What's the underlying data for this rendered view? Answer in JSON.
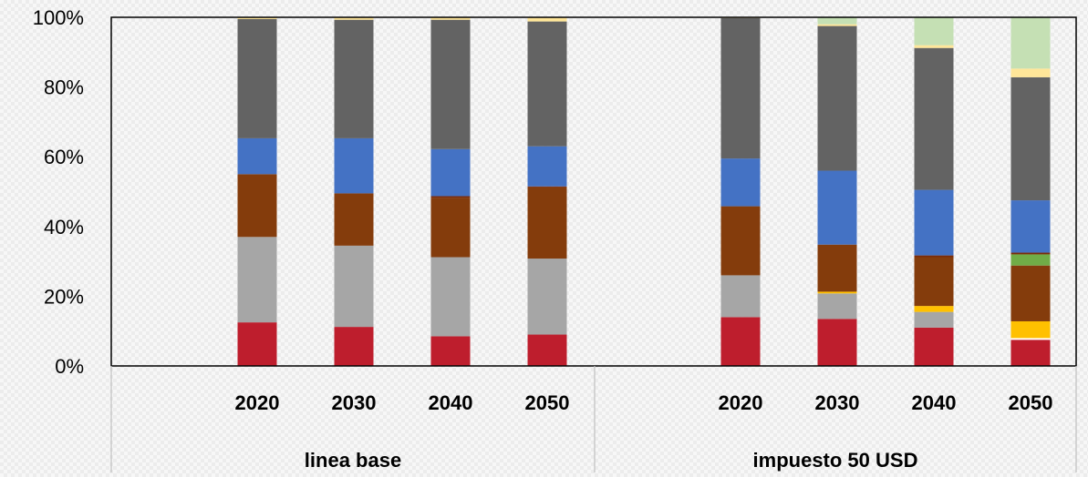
{
  "chart_data": {
    "type": "bar",
    "stacked": true,
    "percent": true,
    "title": "",
    "xlabel": "",
    "ylabel": "",
    "ylim": [
      0,
      100
    ],
    "y_ticks": [
      "0%",
      "20%",
      "40%",
      "60%",
      "80%",
      "100%"
    ],
    "groups": [
      {
        "label": "linea base",
        "categories": [
          "2020",
          "2030",
          "2040",
          "2050"
        ]
      },
      {
        "label": "impuesto 50 USD",
        "categories": [
          "2020",
          "2030",
          "2040",
          "2050"
        ]
      }
    ],
    "categories": [
      "2020",
      "2030",
      "2040",
      "2050",
      "2020",
      "2030",
      "2040",
      "2050"
    ],
    "legend": "none",
    "grid": false,
    "series": [
      {
        "color": "#be1e2d",
        "values": [
          12.5,
          11.2,
          8.5,
          9.0,
          14.0,
          13.5,
          11.0,
          7.5
        ]
      },
      {
        "color": "#ffffff",
        "values": [
          0,
          0,
          0,
          0,
          0,
          0,
          0,
          0.5
        ]
      },
      {
        "color": "#a6a6a6",
        "values": [
          24.5,
          23.3,
          22.7,
          21.8,
          12.0,
          7.3,
          4.5,
          0
        ]
      },
      {
        "color": "#ffc000",
        "values": [
          0,
          0,
          0,
          0,
          0,
          0.5,
          1.7,
          4.8
        ]
      },
      {
        "color": "#843c0c",
        "values": [
          18.0,
          15.0,
          17.0,
          20.4,
          19.8,
          13.5,
          14.0,
          16.0
        ]
      },
      {
        "color": "#70ad47",
        "values": [
          0,
          0,
          0,
          0,
          0,
          0,
          0,
          3.2
        ]
      },
      {
        "color": "#7b2c0a",
        "values": [
          0,
          0,
          0.5,
          0.3,
          0,
          0,
          0.5,
          0.5
        ]
      },
      {
        "color": "#4472c4",
        "values": [
          10.3,
          15.8,
          13.5,
          11.5,
          13.7,
          21.2,
          18.8,
          15.0
        ]
      },
      {
        "color": "#636363",
        "values": [
          34.2,
          34.0,
          37.1,
          35.8,
          40.3,
          41.5,
          40.7,
          35.3
        ]
      },
      {
        "color": "#ffe699",
        "values": [
          0.5,
          0.7,
          0.7,
          1.2,
          0.2,
          0.5,
          0.8,
          2.5
        ]
      },
      {
        "color": "#c5e0b4",
        "values": [
          0,
          0,
          0,
          0,
          0,
          2.0,
          8.0,
          14.7
        ]
      }
    ]
  }
}
